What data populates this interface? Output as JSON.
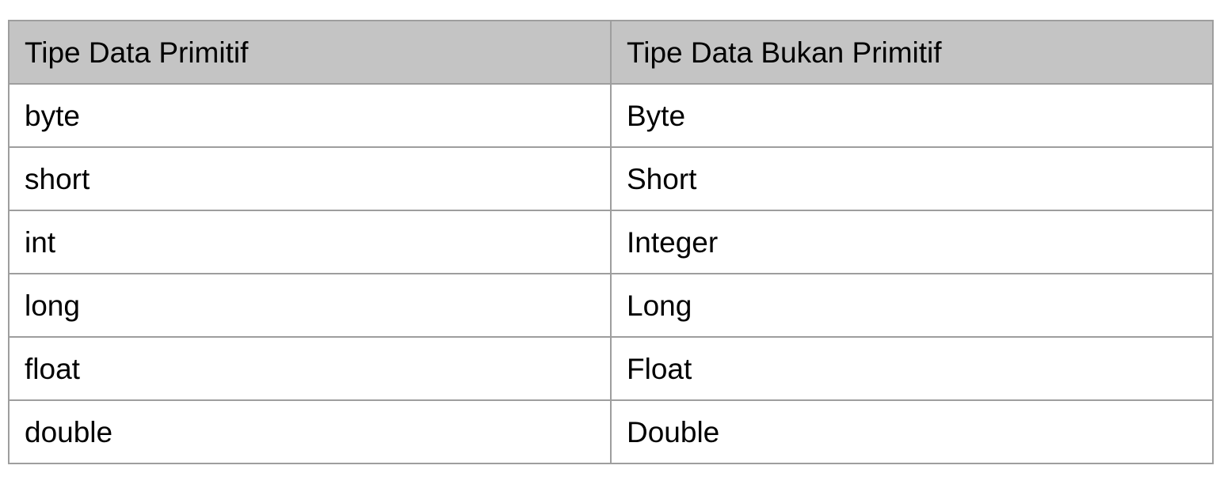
{
  "table": {
    "headers": [
      "Tipe Data Primitif",
      "Tipe Data Bukan Primitif"
    ],
    "rows": [
      [
        "byte",
        "Byte"
      ],
      [
        "short",
        "Short"
      ],
      [
        "int",
        "Integer"
      ],
      [
        "long",
        "Long"
      ],
      [
        "float",
        "Float"
      ],
      [
        "double",
        "Double"
      ]
    ],
    "colors": {
      "header_background": "#c4c4c4",
      "border": "#9e9e9e",
      "body_background": "#ffffff",
      "text": "#000000"
    }
  }
}
